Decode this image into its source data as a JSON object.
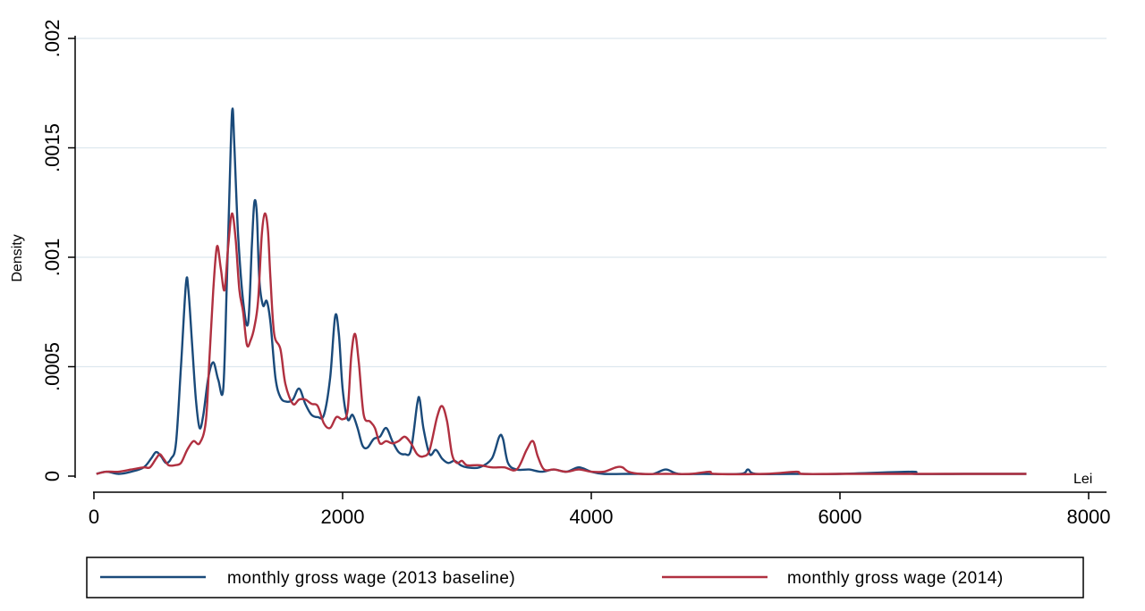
{
  "chart_data": {
    "type": "line",
    "title": "",
    "xlabel": "Lei",
    "ylabel": "Density",
    "xlim": [
      0,
      8000
    ],
    "ylim": [
      0,
      0.002
    ],
    "x_ticks": [
      0,
      2000,
      4000,
      6000,
      8000
    ],
    "x_tick_labels": [
      "0",
      "2000",
      "4000",
      "6000",
      "8000"
    ],
    "y_ticks": [
      0,
      0.0005,
      0.001,
      0.0015,
      0.002
    ],
    "y_tick_labels": [
      "0",
      ".0005",
      ".001",
      ".0015",
      ".002"
    ],
    "grid": "horizontal",
    "legend_position": "bottom",
    "series": [
      {
        "name": "monthly gross wage (2013 baseline)",
        "color": "#1a4a7a",
        "points": [
          [
            20,
            1e-05
          ],
          [
            100,
            2e-05
          ],
          [
            200,
            1e-05
          ],
          [
            300,
            2e-05
          ],
          [
            400,
            4e-05
          ],
          [
            460,
            8e-05
          ],
          [
            500,
            0.00011
          ],
          [
            540,
            9e-05
          ],
          [
            580,
            6e-05
          ],
          [
            620,
            8e-05
          ],
          [
            660,
            0.00015
          ],
          [
            700,
            0.0005
          ],
          [
            740,
            0.00088
          ],
          [
            760,
            0.00085
          ],
          [
            790,
            0.0006
          ],
          [
            820,
            0.00035
          ],
          [
            850,
            0.00022
          ],
          [
            880,
            0.00028
          ],
          [
            920,
            0.00045
          ],
          [
            960,
            0.00052
          ],
          [
            1000,
            0.00044
          ],
          [
            1040,
            0.0004
          ],
          [
            1070,
            0.0009
          ],
          [
            1100,
            0.0015
          ],
          [
            1115,
            0.00168
          ],
          [
            1130,
            0.0015
          ],
          [
            1160,
            0.0011
          ],
          [
            1200,
            0.0008
          ],
          [
            1240,
            0.0007
          ],
          [
            1270,
            0.00105
          ],
          [
            1290,
            0.00125
          ],
          [
            1310,
            0.0012
          ],
          [
            1330,
            0.0009
          ],
          [
            1360,
            0.00078
          ],
          [
            1390,
            0.0008
          ],
          [
            1420,
            0.0007
          ],
          [
            1460,
            0.00045
          ],
          [
            1500,
            0.00036
          ],
          [
            1550,
            0.00034
          ],
          [
            1600,
            0.00035
          ],
          [
            1650,
            0.0004
          ],
          [
            1700,
            0.00033
          ],
          [
            1750,
            0.00028
          ],
          [
            1800,
            0.00027
          ],
          [
            1850,
            0.00028
          ],
          [
            1900,
            0.00045
          ],
          [
            1940,
            0.00073
          ],
          [
            1970,
            0.00065
          ],
          [
            2000,
            0.0004
          ],
          [
            2040,
            0.00026
          ],
          [
            2080,
            0.00028
          ],
          [
            2120,
            0.00022
          ],
          [
            2160,
            0.00014
          ],
          [
            2200,
            0.00013
          ],
          [
            2250,
            0.00017
          ],
          [
            2300,
            0.00018
          ],
          [
            2350,
            0.00022
          ],
          [
            2400,
            0.00016
          ],
          [
            2450,
            0.00011
          ],
          [
            2500,
            0.0001
          ],
          [
            2550,
            0.00012
          ],
          [
            2600,
            0.00033
          ],
          [
            2620,
            0.00035
          ],
          [
            2650,
            0.00022
          ],
          [
            2700,
            0.0001
          ],
          [
            2750,
            0.00012
          ],
          [
            2800,
            8e-05
          ],
          [
            2850,
            6e-05
          ],
          [
            2900,
            7e-05
          ],
          [
            2950,
            5e-05
          ],
          [
            3000,
            4e-05
          ],
          [
            3100,
            4e-05
          ],
          [
            3200,
            8e-05
          ],
          [
            3260,
            0.00018
          ],
          [
            3290,
            0.00017
          ],
          [
            3330,
            6e-05
          ],
          [
            3400,
            3e-05
          ],
          [
            3500,
            3e-05
          ],
          [
            3600,
            2e-05
          ],
          [
            3700,
            3e-05
          ],
          [
            3800,
            2e-05
          ],
          [
            3900,
            4e-05
          ],
          [
            4000,
            2e-05
          ],
          [
            4100,
            1e-05
          ],
          [
            4300,
            1e-05
          ],
          [
            4400,
            1e-05
          ],
          [
            4500,
            1e-05
          ],
          [
            4600,
            3e-05
          ],
          [
            4700,
            1e-05
          ],
          [
            4900,
            1e-05
          ],
          [
            5200,
            1e-05
          ],
          [
            5260,
            3e-05
          ],
          [
            5320,
            1e-05
          ],
          [
            5600,
            1e-05
          ],
          [
            6000,
            1e-05
          ],
          [
            6580,
            2e-05
          ],
          [
            6600,
            1e-05
          ],
          [
            7000,
            1e-05
          ],
          [
            7500,
            1e-05
          ]
        ]
      },
      {
        "name": "monthly gross wage (2014)",
        "color": "#b03040",
        "points": [
          [
            20,
            1e-05
          ],
          [
            100,
            2e-05
          ],
          [
            200,
            2e-05
          ],
          [
            300,
            3e-05
          ],
          [
            400,
            4e-05
          ],
          [
            450,
            4e-05
          ],
          [
            500,
            8e-05
          ],
          [
            530,
            0.0001
          ],
          [
            560,
            8e-05
          ],
          [
            600,
            5e-05
          ],
          [
            650,
            5e-05
          ],
          [
            700,
            6e-05
          ],
          [
            750,
            0.00012
          ],
          [
            800,
            0.00016
          ],
          [
            850,
            0.00015
          ],
          [
            900,
            0.00025
          ],
          [
            930,
            0.00055
          ],
          [
            960,
            0.00085
          ],
          [
            990,
            0.00105
          ],
          [
            1020,
            0.00095
          ],
          [
            1050,
            0.00085
          ],
          [
            1080,
            0.00105
          ],
          [
            1110,
            0.0012
          ],
          [
            1140,
            0.00108
          ],
          [
            1170,
            0.00085
          ],
          [
            1200,
            0.00075
          ],
          [
            1230,
            0.0006
          ],
          [
            1260,
            0.00062
          ],
          [
            1290,
            0.00068
          ],
          [
            1320,
            0.0008
          ],
          [
            1350,
            0.0011
          ],
          [
            1375,
            0.0012
          ],
          [
            1400,
            0.00112
          ],
          [
            1420,
            0.0009
          ],
          [
            1450,
            0.00065
          ],
          [
            1500,
            0.00058
          ],
          [
            1540,
            0.00042
          ],
          [
            1600,
            0.00033
          ],
          [
            1650,
            0.00035
          ],
          [
            1700,
            0.00035
          ],
          [
            1750,
            0.00033
          ],
          [
            1800,
            0.00032
          ],
          [
            1850,
            0.00024
          ],
          [
            1900,
            0.00022
          ],
          [
            1950,
            0.00027
          ],
          [
            2000,
            0.00026
          ],
          [
            2040,
            0.0003
          ],
          [
            2070,
            0.00055
          ],
          [
            2100,
            0.00065
          ],
          [
            2130,
            0.00052
          ],
          [
            2170,
            0.00028
          ],
          [
            2220,
            0.00025
          ],
          [
            2260,
            0.00022
          ],
          [
            2300,
            0.00015
          ],
          [
            2350,
            0.00016
          ],
          [
            2400,
            0.00015
          ],
          [
            2450,
            0.00016
          ],
          [
            2500,
            0.00018
          ],
          [
            2550,
            0.00015
          ],
          [
            2600,
            0.0001
          ],
          [
            2650,
            9e-05
          ],
          [
            2700,
            0.00012
          ],
          [
            2760,
            0.00027
          ],
          [
            2800,
            0.00032
          ],
          [
            2840,
            0.00025
          ],
          [
            2880,
            0.0001
          ],
          [
            2920,
            6e-05
          ],
          [
            2960,
            7e-05
          ],
          [
            3000,
            5e-05
          ],
          [
            3100,
            5e-05
          ],
          [
            3200,
            4e-05
          ],
          [
            3300,
            4e-05
          ],
          [
            3400,
            3e-05
          ],
          [
            3480,
            0.00012
          ],
          [
            3530,
            0.00016
          ],
          [
            3570,
            9e-05
          ],
          [
            3620,
            3e-05
          ],
          [
            3700,
            3e-05
          ],
          [
            3800,
            2e-05
          ],
          [
            3900,
            3e-05
          ],
          [
            4000,
            2e-05
          ],
          [
            4100,
            2e-05
          ],
          [
            4200,
            4e-05
          ],
          [
            4250,
            4e-05
          ],
          [
            4300,
            2e-05
          ],
          [
            4400,
            1e-05
          ],
          [
            4600,
            1e-05
          ],
          [
            4800,
            1e-05
          ],
          [
            4950,
            2e-05
          ],
          [
            5000,
            1e-05
          ],
          [
            5400,
            1e-05
          ],
          [
            5650,
            2e-05
          ],
          [
            5700,
            1e-05
          ],
          [
            6000,
            1e-05
          ],
          [
            6500,
            1e-05
          ],
          [
            7000,
            1e-05
          ],
          [
            7500,
            1e-05
          ]
        ]
      }
    ]
  },
  "icons": {
    "legend_swatch_2013": "line-swatch",
    "legend_swatch_2014": "line-swatch"
  }
}
